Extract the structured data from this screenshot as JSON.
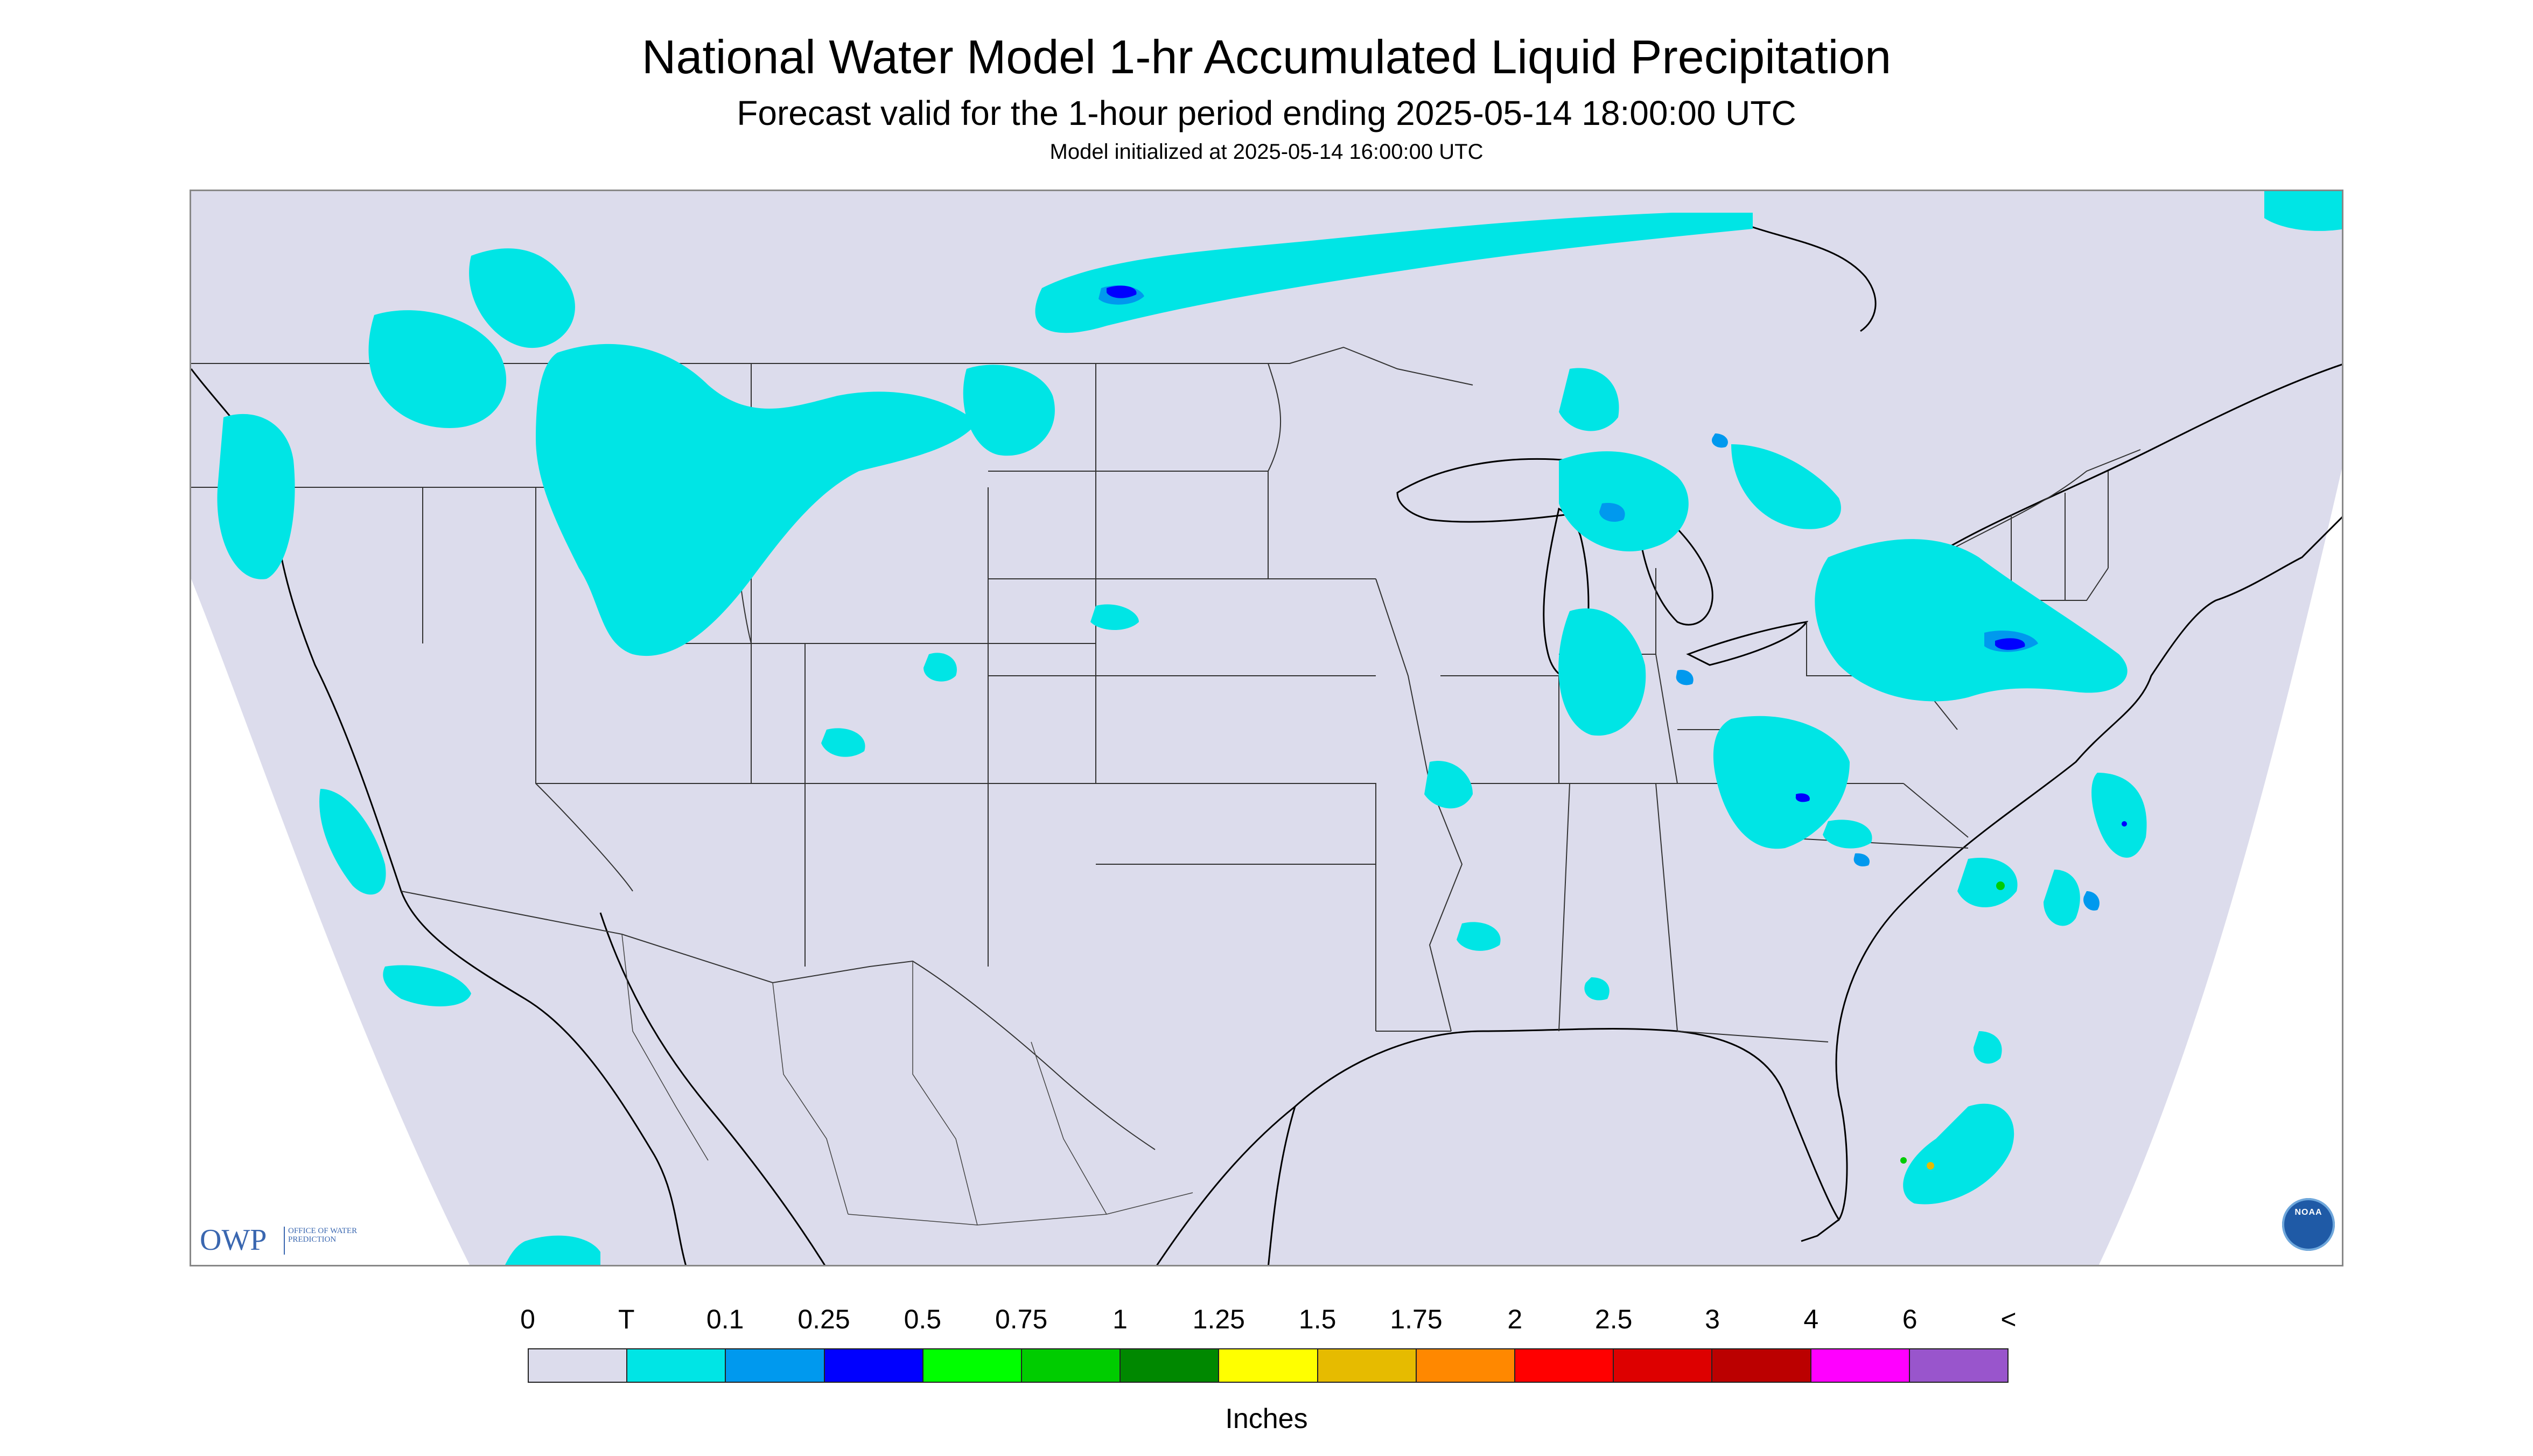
{
  "header": {
    "title": "National Water Model 1-hr Accumulated Liquid Precipitation",
    "subtitle": "Forecast valid for the 1-hour period ending 2025-05-14 18:00:00 UTC",
    "init": "Model initialized at 2025-05-14 16:00:00 UTC"
  },
  "logos": {
    "owp_mark": "OWP",
    "owp_sub": "OFFICE OF WATER PREDICTION",
    "noaa_text": "NOAA"
  },
  "colors": {
    "map_domain": "#dcdcec",
    "outside_domain": "#ffffff",
    "borders": "#000000"
  },
  "legend": {
    "units": "Inches",
    "labels": [
      "0",
      "T",
      "0.1",
      "0.25",
      "0.5",
      "0.75",
      "1",
      "1.25",
      "1.5",
      "1.75",
      "2",
      "2.5",
      "3",
      "4",
      "6",
      "<"
    ],
    "colors": [
      "#dcdcec",
      "#00e5e5",
      "#0099ee",
      "#0000ff",
      "#00ff00",
      "#00cc00",
      "#008800",
      "#ffff00",
      "#e6bb00",
      "#ff8800",
      "#ff0000",
      "#dd0000",
      "#bb0000",
      "#ff00ff",
      "#9955cc"
    ]
  }
}
